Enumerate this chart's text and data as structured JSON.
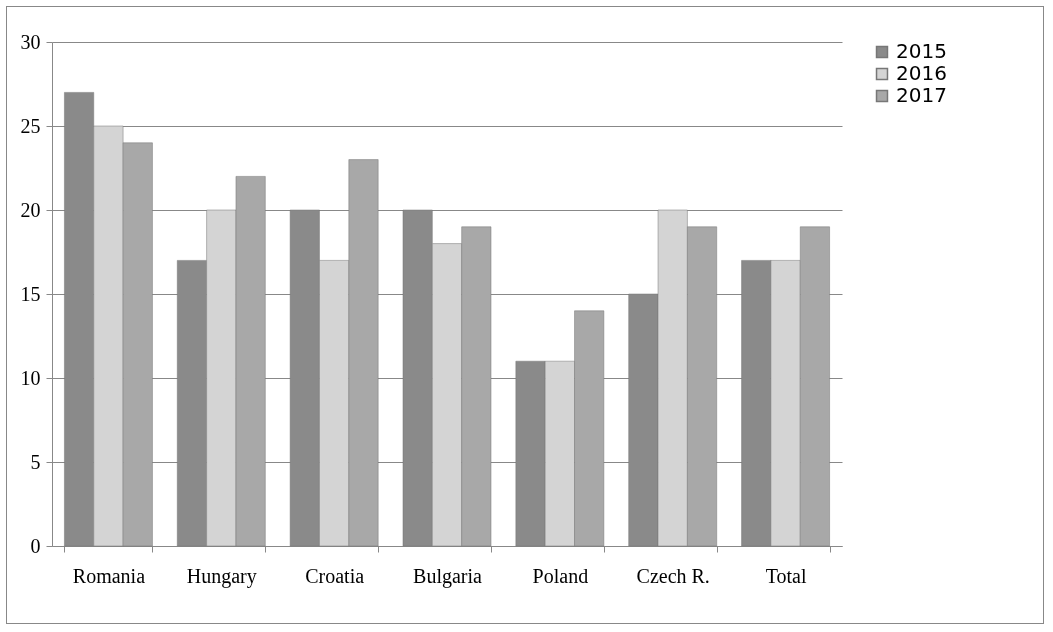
{
  "chart_data": {
    "type": "bar",
    "categories": [
      "Romania",
      "Hungary",
      "Croatia",
      "Bulgaria",
      "Poland",
      "Czech R.",
      "Total"
    ],
    "series": [
      {
        "name": "2015",
        "color": "#8a8a8a",
        "values": [
          27,
          17,
          20,
          20,
          11,
          15,
          17
        ]
      },
      {
        "name": "2016",
        "color": "#d4d4d4",
        "values": [
          25,
          20,
          17,
          18,
          11,
          20,
          17
        ]
      },
      {
        "name": "2017",
        "color": "#a8a8a8",
        "values": [
          24,
          22,
          23,
          19,
          14,
          19,
          19
        ]
      }
    ],
    "ylim": [
      0,
      30
    ],
    "yticks": [
      0,
      5,
      10,
      15,
      20,
      25,
      30
    ],
    "grid": "y",
    "legend": "right"
  }
}
